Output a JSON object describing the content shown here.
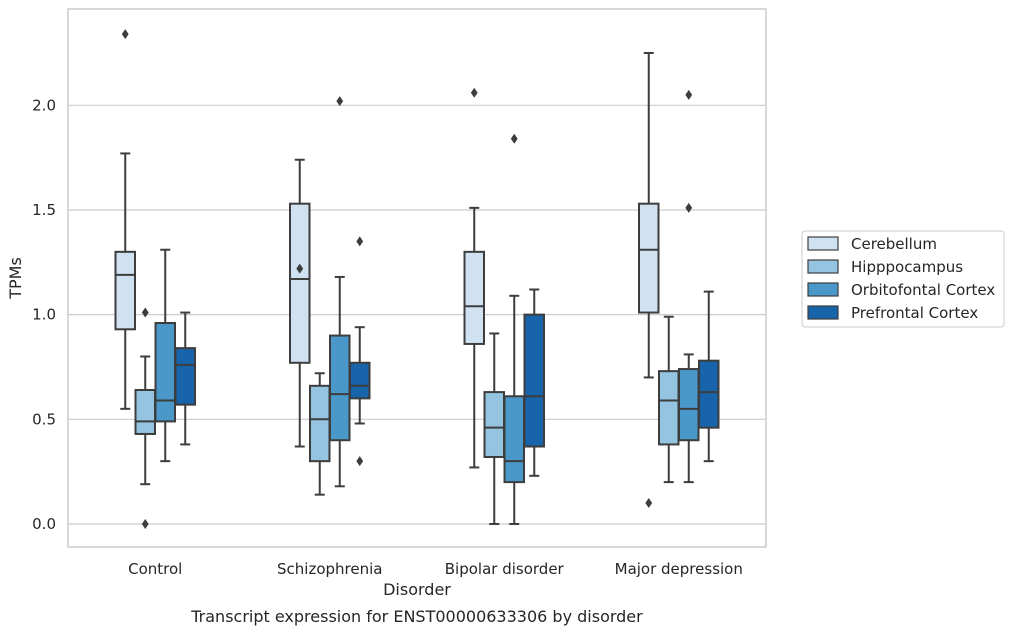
{
  "chart_data": {
    "type": "box",
    "title": "",
    "caption": "Transcript expression for ENST00000633306 by disorder",
    "xlabel": "Disorder",
    "ylabel": "TPMs",
    "ylim": [
      -0.11,
      2.46
    ],
    "yticks": [
      "0.0",
      "0.5",
      "1.0",
      "1.5",
      "2.0"
    ],
    "ytick_values": [
      0.0,
      0.5,
      1.0,
      1.5,
      2.0
    ],
    "categories": [
      "Control",
      "Schizophrenia",
      "Bipolar disorder",
      "Major depression"
    ],
    "grid": "horizontal",
    "legend_position": "right",
    "series": [
      {
        "name": "Cerebellum",
        "color": "#d0e1f2",
        "boxes": [
          {
            "whislo": 0.55,
            "q1": 0.93,
            "med": 1.19,
            "q3": 1.3,
            "whishi": 1.77,
            "fliers": [
              2.34
            ]
          },
          {
            "whislo": 0.37,
            "q1": 0.77,
            "med": 1.17,
            "q3": 1.53,
            "whishi": 1.74,
            "fliers": [
              1.22
            ]
          },
          {
            "whislo": 0.27,
            "q1": 0.86,
            "med": 1.04,
            "q3": 1.3,
            "whishi": 1.51,
            "fliers": [
              2.06
            ]
          },
          {
            "whislo": 0.7,
            "q1": 1.01,
            "med": 1.31,
            "q3": 1.53,
            "whishi": 2.25,
            "fliers": [
              0.1
            ]
          }
        ]
      },
      {
        "name": "Hipppocampus",
        "color": "#94c4df",
        "boxes": [
          {
            "whislo": 0.19,
            "q1": 0.43,
            "med": 0.49,
            "q3": 0.64,
            "whishi": 0.8,
            "fliers": [
              1.01,
              0.0
            ]
          },
          {
            "whislo": 0.14,
            "q1": 0.3,
            "med": 0.5,
            "q3": 0.66,
            "whishi": 0.72,
            "fliers": []
          },
          {
            "whislo": 0.0,
            "q1": 0.32,
            "med": 0.46,
            "q3": 0.63,
            "whishi": 0.91,
            "fliers": []
          },
          {
            "whislo": 0.2,
            "q1": 0.38,
            "med": 0.59,
            "q3": 0.73,
            "whishi": 0.99,
            "fliers": []
          }
        ]
      },
      {
        "name": "Orbitofontal Cortex",
        "color": "#4a98c9",
        "boxes": [
          {
            "whislo": 0.3,
            "q1": 0.49,
            "med": 0.59,
            "q3": 0.96,
            "whishi": 1.31,
            "fliers": []
          },
          {
            "whislo": 0.18,
            "q1": 0.4,
            "med": 0.62,
            "q3": 0.9,
            "whishi": 1.18,
            "fliers": [
              2.02
            ]
          },
          {
            "whislo": 0.0,
            "q1": 0.2,
            "med": 0.3,
            "q3": 0.61,
            "whishi": 1.09,
            "fliers": [
              1.84
            ]
          },
          {
            "whislo": 0.2,
            "q1": 0.4,
            "med": 0.55,
            "q3": 0.74,
            "whishi": 0.81,
            "fliers": [
              2.05,
              1.51
            ]
          }
        ]
      },
      {
        "name": "Prefrontal Cortex",
        "color": "#1764ab",
        "boxes": [
          {
            "whislo": 0.38,
            "q1": 0.57,
            "med": 0.76,
            "q3": 0.84,
            "whishi": 1.01,
            "fliers": []
          },
          {
            "whislo": 0.48,
            "q1": 0.6,
            "med": 0.66,
            "q3": 0.77,
            "whishi": 0.94,
            "fliers": [
              1.35,
              0.3
            ]
          },
          {
            "whislo": 0.23,
            "q1": 0.37,
            "med": 0.61,
            "q3": 1.0,
            "whishi": 1.12,
            "fliers": []
          },
          {
            "whislo": 0.3,
            "q1": 0.46,
            "med": 0.63,
            "q3": 0.78,
            "whishi": 1.11,
            "fliers": []
          }
        ]
      }
    ]
  }
}
